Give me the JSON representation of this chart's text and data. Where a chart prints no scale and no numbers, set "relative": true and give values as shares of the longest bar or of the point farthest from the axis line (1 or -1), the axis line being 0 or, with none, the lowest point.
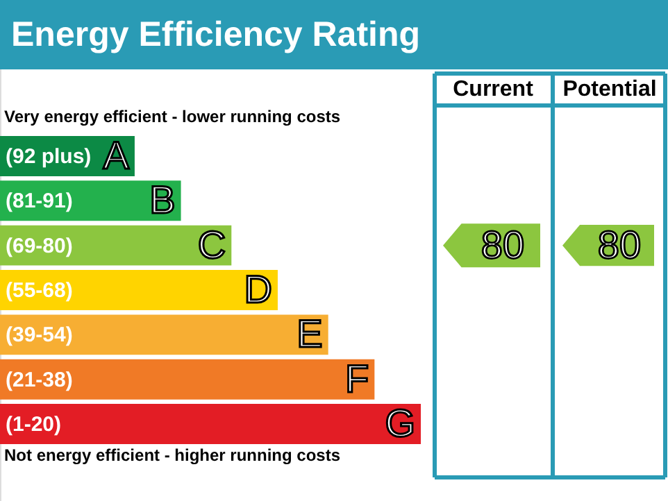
{
  "chart_data": {
    "type": "bar",
    "orientation": "horizontal",
    "relative": true,
    "title": "Energy Efficiency Rating",
    "categories": [
      "A",
      "B",
      "C",
      "D",
      "E",
      "F",
      "G"
    ],
    "values": [
      0.32,
      0.43,
      0.55,
      0.66,
      0.78,
      0.89,
      1.0
    ],
    "colors": [
      "#0c8a45",
      "#23b14d",
      "#8cc63f",
      "#ffd400",
      "#f7ae33",
      "#f07a26",
      "#e31d25"
    ],
    "annotations": [
      "Very energy efficient - lower running costs",
      "Not energy efficient - higher running costs",
      "Current",
      "Potential",
      "(92 plus)",
      "(81-91)",
      "(69-80)",
      "(55-68)",
      "(39-54)",
      "(21-38)",
      "(1-20)",
      "80",
      "80"
    ]
  }
}
